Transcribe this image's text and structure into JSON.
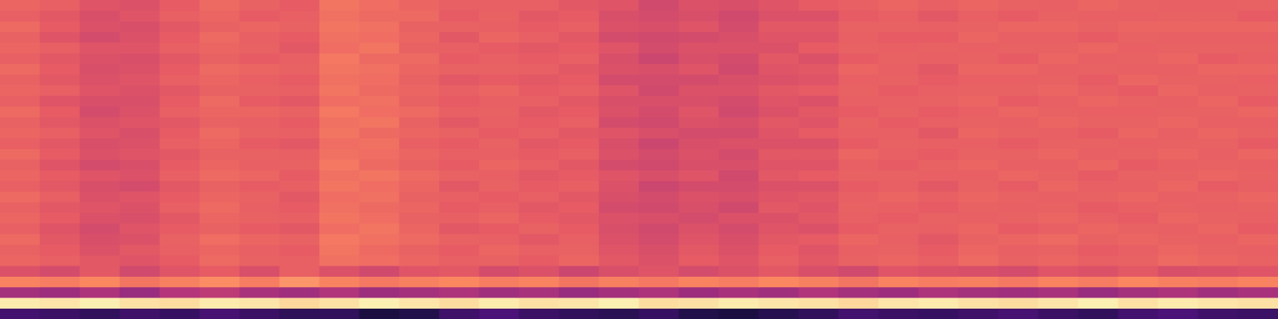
{
  "chart_data": {
    "type": "heatmap",
    "color": "magma",
    "tick_labels": false,
    "grid": false,
    "zlim": [
      0,
      100
    ],
    "values": [
      [
        22,
        20,
        18,
        21,
        19,
        23,
        20,
        17,
        18,
        12,
        14,
        21,
        24,
        20,
        18,
        16,
        19,
        14,
        12,
        15,
        18,
        22,
        20,
        19,
        21,
        23,
        20,
        18,
        22,
        24,
        21,
        20
      ],
      [
        96,
        95,
        97,
        94,
        93,
        96,
        95,
        92,
        94,
        97,
        95,
        93,
        96,
        94,
        95,
        97,
        93,
        94,
        96,
        95,
        94,
        92,
        95,
        96,
        94,
        93,
        95,
        97,
        94,
        96,
        95,
        94
      ],
      [
        46,
        44,
        48,
        43,
        50,
        52,
        47,
        45,
        49,
        44,
        46,
        48,
        45,
        47,
        43,
        46,
        48,
        44,
        47,
        45,
        49,
        46,
        44,
        48,
        46,
        45,
        47,
        43,
        46,
        48,
        45,
        47
      ],
      [
        74,
        72,
        75,
        70,
        73,
        76,
        72,
        78,
        74,
        71,
        73,
        75,
        72,
        74,
        70,
        73,
        71,
        74,
        72,
        75,
        73,
        70,
        74,
        72,
        73,
        71,
        74,
        72,
        75,
        73,
        72,
        74
      ],
      [
        60,
        58,
        62,
        57,
        61,
        63,
        59,
        64,
        60,
        57,
        61,
        62,
        58,
        60,
        56,
        59,
        61,
        58,
        60,
        62,
        59,
        57,
        61,
        60,
        59,
        58,
        61,
        60,
        62,
        59,
        60,
        61
      ],
      [
        66,
        64,
        62,
        61,
        63,
        67,
        65,
        64,
        69,
        68,
        66,
        64,
        65,
        63,
        66,
        62,
        60,
        63,
        61,
        64,
        62,
        65,
        66,
        64,
        67,
        65,
        66,
        64,
        65,
        67,
        66,
        65
      ],
      [
        65,
        63,
        60,
        62,
        64,
        66,
        64,
        63,
        70,
        67,
        65,
        63,
        66,
        64,
        65,
        61,
        59,
        62,
        60,
        63,
        61,
        64,
        65,
        63,
        66,
        64,
        65,
        63,
        64,
        66,
        65,
        64
      ],
      [
        67,
        62,
        59,
        60,
        65,
        68,
        66,
        65,
        71,
        69,
        67,
        65,
        64,
        62,
        64,
        60,
        58,
        61,
        59,
        62,
        63,
        66,
        64,
        62,
        65,
        66,
        67,
        65,
        66,
        65,
        64,
        66
      ],
      [
        64,
        61,
        58,
        61,
        63,
        65,
        63,
        62,
        68,
        70,
        66,
        62,
        63,
        65,
        63,
        59,
        57,
        60,
        58,
        61,
        60,
        63,
        65,
        64,
        66,
        63,
        64,
        66,
        65,
        64,
        66,
        63
      ],
      [
        66,
        63,
        60,
        59,
        62,
        66,
        65,
        64,
        70,
        68,
        65,
        64,
        66,
        63,
        62,
        60,
        59,
        58,
        60,
        60,
        62,
        64,
        63,
        65,
        64,
        65,
        66,
        64,
        63,
        66,
        65,
        64
      ],
      [
        65,
        62,
        61,
        60,
        64,
        67,
        64,
        63,
        69,
        67,
        66,
        63,
        64,
        62,
        63,
        58,
        57,
        59,
        57,
        62,
        61,
        65,
        64,
        63,
        65,
        64,
        65,
        63,
        64,
        65,
        64,
        65
      ],
      [
        67,
        64,
        60,
        61,
        63,
        66,
        65,
        62,
        68,
        69,
        65,
        64,
        63,
        64,
        62,
        59,
        58,
        60,
        59,
        61,
        62,
        64,
        66,
        64,
        66,
        65,
        64,
        65,
        66,
        64,
        65,
        66
      ],
      [
        64,
        62,
        59,
        58,
        62,
        65,
        63,
        64,
        70,
        68,
        66,
        62,
        65,
        63,
        64,
        60,
        56,
        58,
        58,
        60,
        60,
        63,
        64,
        62,
        65,
        63,
        66,
        64,
        64,
        66,
        63,
        64
      ],
      [
        66,
        63,
        61,
        60,
        64,
        67,
        66,
        63,
        69,
        70,
        67,
        65,
        64,
        62,
        63,
        61,
        59,
        61,
        57,
        62,
        63,
        65,
        65,
        64,
        64,
        66,
        65,
        63,
        65,
        65,
        66,
        65
      ],
      [
        65,
        61,
        58,
        59,
        63,
        66,
        64,
        65,
        71,
        67,
        65,
        63,
        66,
        64,
        62,
        58,
        57,
        59,
        59,
        61,
        61,
        64,
        63,
        65,
        66,
        64,
        64,
        66,
        63,
        64,
        65,
        64
      ],
      [
        67,
        63,
        60,
        61,
        62,
        65,
        65,
        64,
        69,
        68,
        66,
        64,
        64,
        63,
        64,
        60,
        58,
        60,
        58,
        62,
        62,
        66,
        64,
        63,
        65,
        65,
        66,
        64,
        65,
        66,
        64,
        66
      ],
      [
        64,
        62,
        59,
        60,
        64,
        66,
        63,
        62,
        68,
        69,
        64,
        63,
        65,
        62,
        63,
        59,
        56,
        59,
        60,
        60,
        60,
        63,
        65,
        64,
        64,
        63,
        65,
        65,
        64,
        65,
        65,
        63
      ],
      [
        66,
        64,
        61,
        59,
        63,
        67,
        65,
        64,
        70,
        67,
        66,
        65,
        63,
        64,
        62,
        61,
        59,
        58,
        58,
        61,
        63,
        64,
        64,
        62,
        66,
        65,
        64,
        63,
        66,
        64,
        66,
        65
      ],
      [
        65,
        62,
        60,
        61,
        62,
        65,
        64,
        63,
        69,
        70,
        65,
        62,
        64,
        63,
        64,
        58,
        57,
        60,
        59,
        62,
        61,
        65,
        63,
        64,
        65,
        64,
        66,
        65,
        65,
        66,
        64,
        64
      ],
      [
        67,
        63,
        58,
        60,
        64,
        66,
        66,
        65,
        71,
        68,
        67,
        64,
        65,
        62,
        63,
        60,
        58,
        61,
        57,
        60,
        62,
        63,
        65,
        63,
        64,
        66,
        65,
        64,
        64,
        65,
        65,
        66
      ],
      [
        64,
        61,
        59,
        59,
        63,
        67,
        63,
        62,
        68,
        69,
        65,
        63,
        64,
        64,
        62,
        59,
        59,
        59,
        58,
        61,
        60,
        64,
        64,
        65,
        66,
        63,
        64,
        66,
        65,
        64,
        66,
        63
      ],
      [
        66,
        64,
        61,
        60,
        62,
        65,
        65,
        64,
        70,
        67,
        66,
        64,
        66,
        63,
        64,
        61,
        57,
        60,
        60,
        62,
        63,
        65,
        63,
        64,
        65,
        65,
        66,
        64,
        63,
        66,
        64,
        65
      ],
      [
        65,
        62,
        60,
        61,
        64,
        66,
        64,
        63,
        69,
        68,
        65,
        62,
        63,
        62,
        63,
        58,
        58,
        58,
        59,
        60,
        61,
        64,
        65,
        63,
        64,
        64,
        65,
        63,
        66,
        65,
        65,
        64
      ],
      [
        67,
        63,
        59,
        60,
        63,
        67,
        66,
        65,
        70,
        69,
        66,
        65,
        65,
        64,
        62,
        60,
        59,
        61,
        57,
        61,
        62,
        66,
        64,
        62,
        66,
        66,
        64,
        65,
        64,
        64,
        66,
        66
      ],
      [
        64,
        62,
        60,
        59,
        62,
        65,
        63,
        64,
        71,
        67,
        67,
        63,
        64,
        63,
        64,
        59,
        56,
        59,
        58,
        62,
        60,
        63,
        65,
        64,
        65,
        63,
        66,
        64,
        65,
        66,
        63,
        64
      ],
      [
        66,
        64,
        61,
        61,
        64,
        66,
        65,
        62,
        68,
        70,
        65,
        64,
        63,
        62,
        63,
        61,
        58,
        60,
        60,
        60,
        63,
        65,
        64,
        65,
        64,
        65,
        65,
        66,
        64,
        65,
        65,
        65
      ],
      [
        65,
        61,
        58,
        60,
        63,
        67,
        64,
        63,
        69,
        68,
        66,
        62,
        66,
        64,
        62,
        58,
        57,
        58,
        59,
        61,
        61,
        64,
        63,
        63,
        66,
        64,
        64,
        63,
        65,
        64,
        64,
        64
      ],
      [
        67,
        63,
        60,
        59,
        62,
        65,
        66,
        65,
        70,
        69,
        65,
        65,
        64,
        63,
        64,
        60,
        59,
        61,
        58,
        62,
        62,
        65,
        65,
        64,
        65,
        66,
        66,
        65,
        66,
        66,
        66,
        66
      ],
      [
        64,
        62,
        59,
        61,
        64,
        66,
        63,
        64,
        69,
        67,
        67,
        63,
        65,
        62,
        63,
        59,
        58,
        59,
        57,
        60,
        60,
        63,
        64,
        62,
        64,
        63,
        65,
        64,
        64,
        65,
        65,
        63
      ],
      [
        66,
        64,
        61,
        60,
        63,
        67,
        65,
        63,
        70,
        68,
        66,
        64,
        64,
        64,
        62,
        61,
        57,
        60,
        59,
        61,
        63,
        64,
        66,
        64,
        66,
        65,
        64,
        66,
        65,
        64,
        64,
        65
      ]
    ]
  }
}
